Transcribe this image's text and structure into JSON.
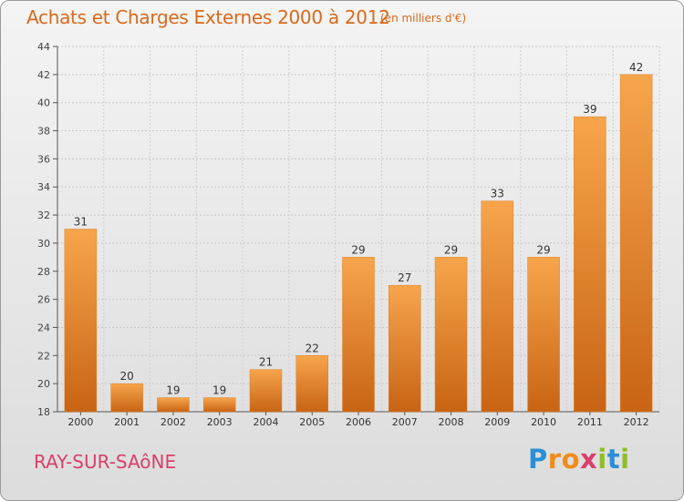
{
  "title": "Achats et Charges Externes 2000 à 2012",
  "subtitle": "(en milliers d'€)",
  "commune": "RAY-SUR-SAôNE",
  "logo": {
    "text": "Proxiti",
    "letters": [
      {
        "ch": "P",
        "color": "#2a8fd6"
      },
      {
        "ch": "r",
        "color": "#f08c1a"
      },
      {
        "ch": "o",
        "color": "#f08c1a"
      },
      {
        "ch": "x",
        "color": "#d9406a"
      },
      {
        "ch": "i",
        "color": "#8cbf26"
      },
      {
        "ch": "t",
        "color": "#2a8fd6"
      },
      {
        "ch": "i",
        "color": "#8cbf26"
      }
    ]
  },
  "colors": {
    "accent": "#d9691a",
    "bar_top": "#f7a54d",
    "bar_bottom": "#c86414"
  },
  "chart_data": {
    "type": "bar",
    "title": "Achats et Charges Externes 2000 à 2012",
    "subtitle": "(en milliers d'€)",
    "categories": [
      "2000",
      "2001",
      "2002",
      "2003",
      "2004",
      "2005",
      "2006",
      "2007",
      "2008",
      "2009",
      "2010",
      "2011",
      "2012"
    ],
    "values": [
      31,
      20,
      19,
      19,
      21,
      22,
      29,
      27,
      29,
      33,
      29,
      39,
      42
    ],
    "ylim": [
      18,
      44
    ],
    "yticks": [
      18,
      20,
      22,
      24,
      26,
      28,
      30,
      32,
      34,
      36,
      38,
      40,
      42,
      44
    ],
    "grid": true,
    "legend": "none"
  }
}
